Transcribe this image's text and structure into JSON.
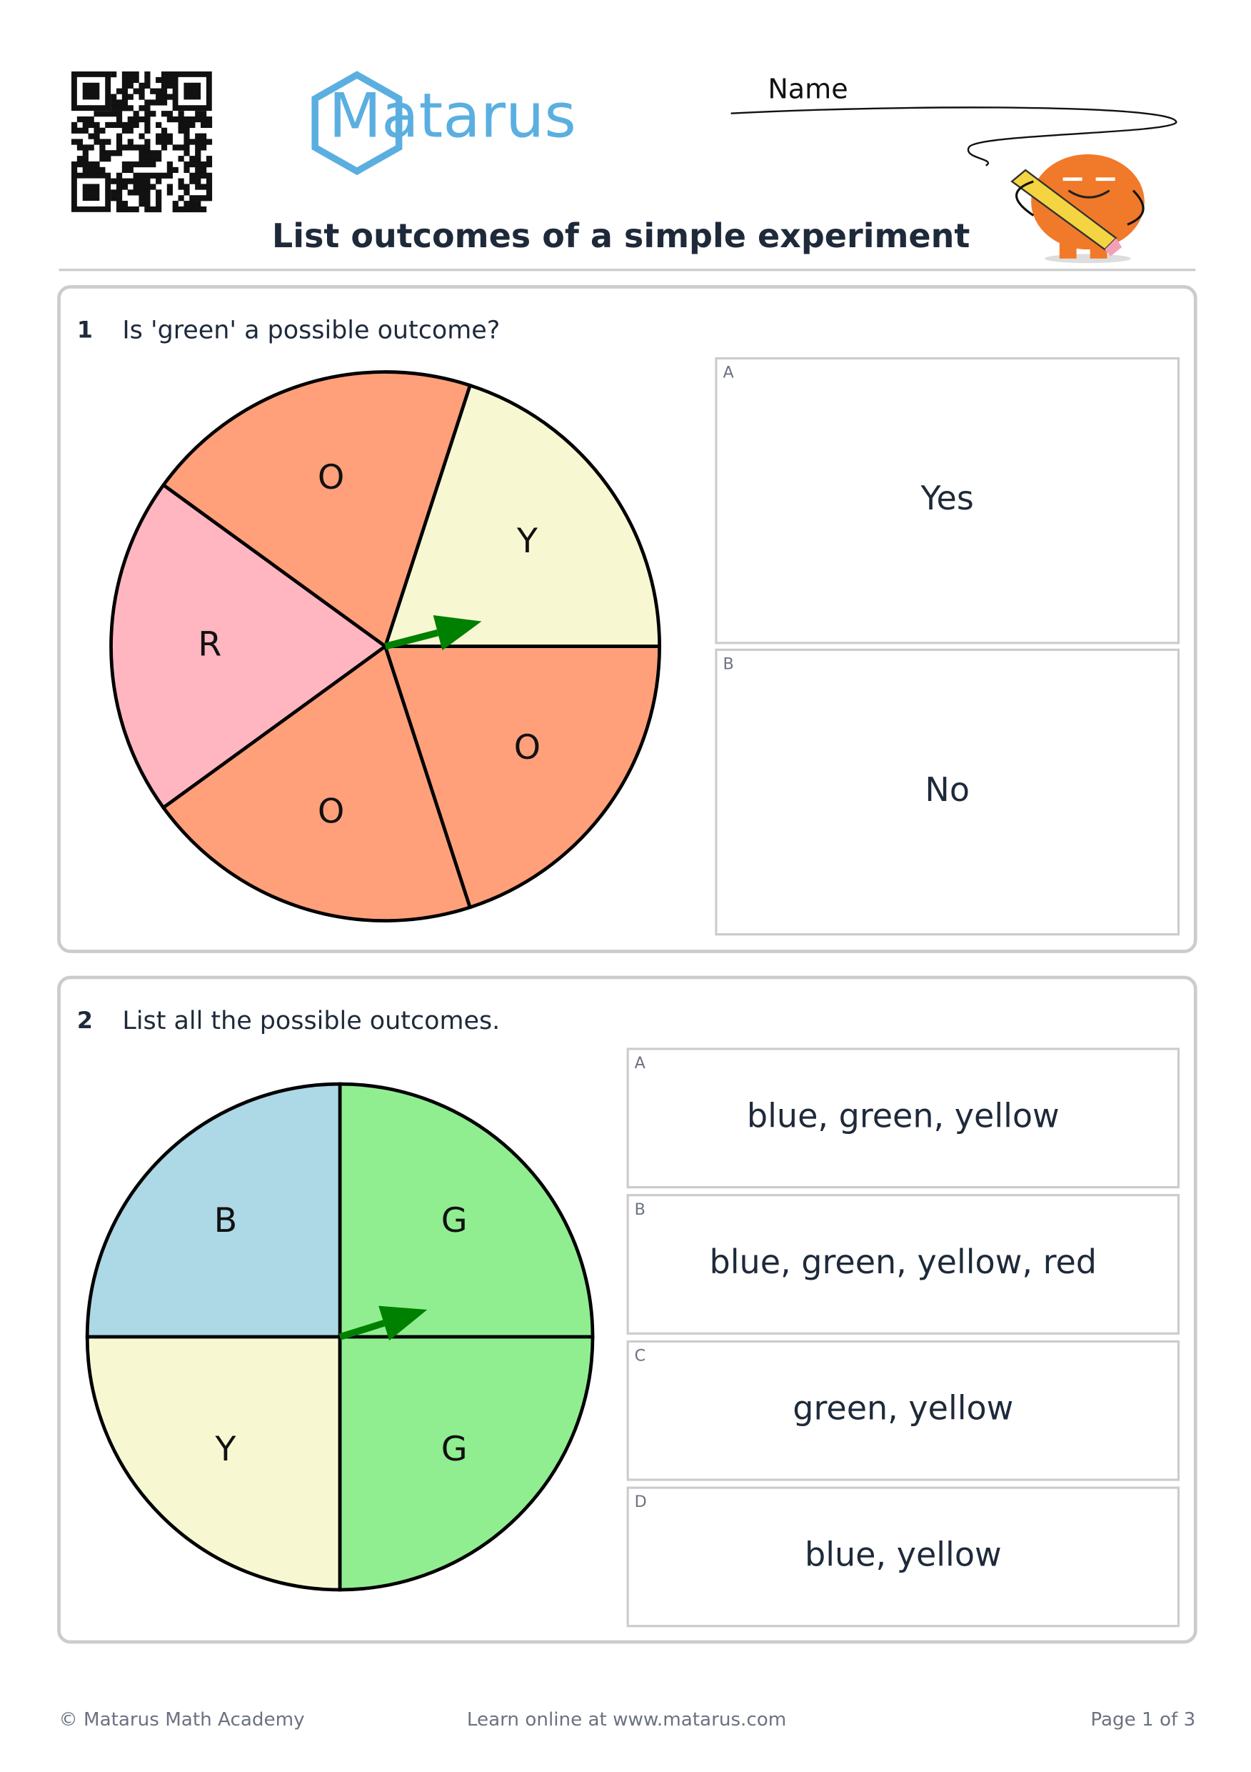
{
  "header": {
    "logo": "Matarus",
    "name_label": "Name",
    "title": "List outcomes of a simple experiment"
  },
  "questions": [
    {
      "number": 1,
      "text": "Is 'green' a possible outcome?",
      "spinner": [
        {
          "label": "Y",
          "color": "#f7f7d2"
        },
        {
          "label": "O",
          "color": "#ffa07a"
        },
        {
          "label": "R",
          "color": "#ffb6c1"
        },
        {
          "label": "O",
          "color": "#ffa07a"
        },
        {
          "label": "O",
          "color": "#ffa07a"
        }
      ],
      "options": [
        {
          "letter": "A",
          "text": "Yes"
        },
        {
          "letter": "B",
          "text": "No"
        }
      ]
    },
    {
      "number": 2,
      "text": "List all the possible outcomes.",
      "spinner": [
        {
          "label": "G",
          "color": "#90ee90"
        },
        {
          "label": "B",
          "color": "#add8e6"
        },
        {
          "label": "Y",
          "color": "#f7f7d2"
        },
        {
          "label": "G",
          "color": "#90ee90"
        }
      ],
      "options": [
        {
          "letter": "A",
          "text": "blue, green, yellow"
        },
        {
          "letter": "B",
          "text": "blue, green, yellow, red"
        },
        {
          "letter": "C",
          "text": "green, yellow"
        },
        {
          "letter": "D",
          "text": "blue, yellow"
        }
      ]
    }
  ],
  "footer": {
    "left": "© Matarus Math Academy",
    "center": "Learn online at www.matarus.com",
    "right": "Page 1 of 3"
  }
}
